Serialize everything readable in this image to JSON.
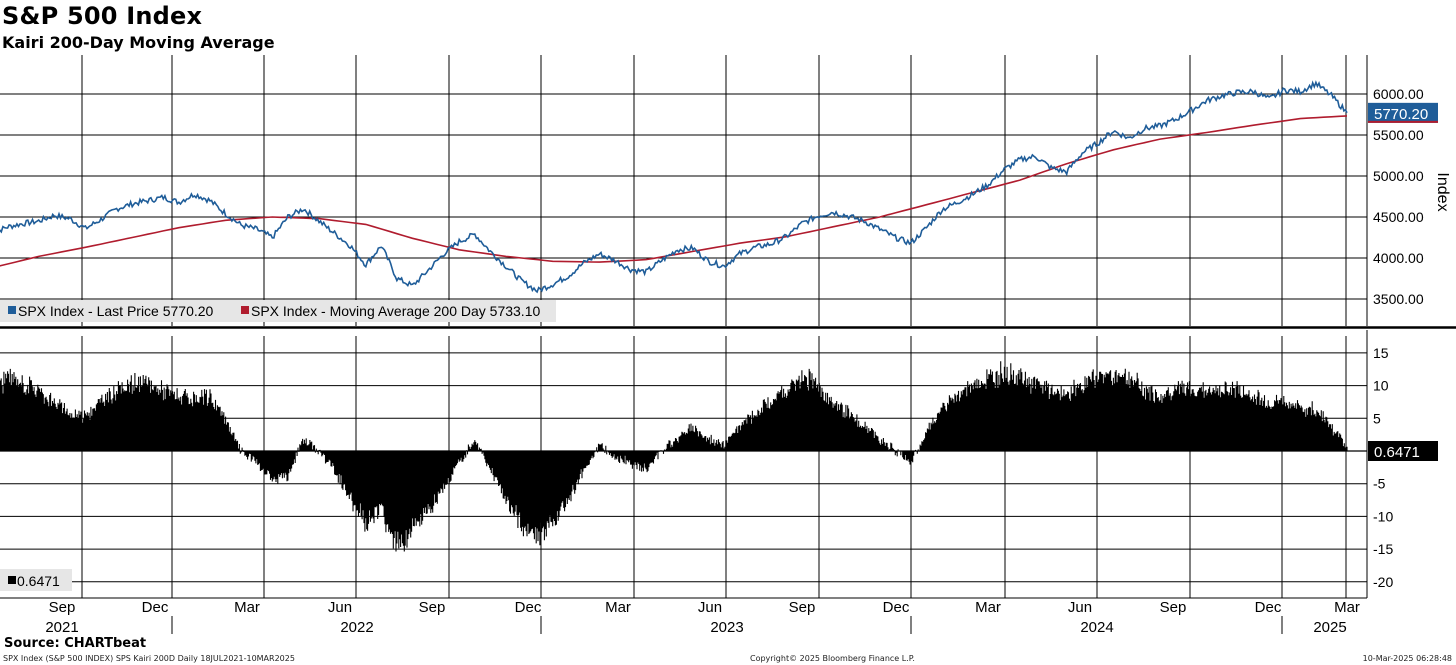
{
  "header": {
    "title": "S&P 500 Index",
    "subtitle": "Kairi 200-Day Moving Average"
  },
  "footer": {
    "source": "Source: CHARTbeat",
    "description": "SPX Index (S&P 500 INDEX) SPS Kairi 200D  Daily 18JUL2021-10MAR2025",
    "copyright": "Copyright© 2025 Bloomberg Finance L.P.",
    "timestamp": "10-Mar-2025 06:28:48"
  },
  "colors": {
    "price_line": "#1f5d99",
    "ma_line": "#b01c2e",
    "histogram": "#000000",
    "grid": "#000000"
  },
  "chart_data": [
    {
      "type": "line",
      "title": "S&P 500 Index",
      "ylabel": "Index",
      "ylim": [
        3200,
        6350
      ],
      "yticks": [
        3500,
        4000,
        4500,
        5000,
        5500,
        6000
      ],
      "ytick_labels": [
        "3500.00",
        "4000.00",
        "4500.00",
        "5000.00",
        "5500.00",
        "6000.00"
      ],
      "x_months": [
        "Sep",
        "Dec",
        "Mar",
        "Jun",
        "Sep",
        "Dec",
        "Mar",
        "Jun",
        "Sep",
        "Dec",
        "Mar",
        "Jun",
        "Sep",
        "Dec",
        "Mar"
      ],
      "x_years": [
        "2021",
        "2022",
        "2023",
        "2024",
        "2025"
      ],
      "legend": [
        {
          "name": "SPX Index - Last Price 5770.20",
          "color": "#1f5d99"
        },
        {
          "name": "SPX Index - Moving Average 200 Day 5733.10",
          "color": "#b01c2e"
        }
      ],
      "last_value_label": "5770.20",
      "series": [
        {
          "name": "SPX Index - Last Price",
          "x": [
            0.0,
            0.5,
            1.0,
            1.5,
            2.0,
            2.5,
            3.0,
            3.5,
            4.0,
            4.5,
            5.0,
            5.5,
            6.0,
            6.5,
            7.0,
            7.5,
            8.0,
            8.5,
            9.0,
            9.5,
            10.0,
            10.5,
            11.0,
            11.5,
            12.0,
            12.5,
            13.0,
            13.5,
            14.0,
            14.5,
            15.0,
            15.5,
            16.0,
            16.5,
            17.0,
            17.5,
            18.0,
            18.5,
            19.0,
            19.5,
            20.0,
            20.5,
            21.0,
            21.5,
            22.0,
            22.5,
            23.0,
            23.5,
            24.0,
            24.5,
            25.0,
            25.5,
            26.0,
            26.5,
            27.0,
            27.5,
            28.0,
            28.5,
            29.0,
            29.5,
            30.0,
            30.5,
            31.0,
            31.5,
            32.0,
            32.5,
            33.0,
            33.5,
            34.0,
            34.5,
            35.0,
            35.5,
            36.0,
            36.5,
            37.0,
            37.5,
            38.0,
            38.5,
            39.0,
            39.5,
            40.0,
            40.5,
            41.0,
            41.5,
            42.0,
            42.5,
            43.0,
            43.5
          ],
          "values": [
            4300,
            4380,
            4420,
            4450,
            4520,
            4480,
            4360,
            4470,
            4600,
            4660,
            4700,
            4740,
            4680,
            4780,
            4700,
            4540,
            4400,
            4350,
            4250,
            4500,
            4600,
            4450,
            4300,
            4150,
            3920,
            4150,
            3750,
            3660,
            3850,
            4050,
            4200,
            4290,
            4080,
            3900,
            3720,
            3600,
            3680,
            3780,
            3940,
            4050,
            3970,
            3860,
            3830,
            3970,
            4100,
            4120,
            3960,
            3900,
            4050,
            4130,
            4170,
            4260,
            4420,
            4510,
            4560,
            4510,
            4450,
            4350,
            4250,
            4180,
            4370,
            4590,
            4680,
            4780,
            4900,
            5080,
            5200,
            5240,
            5100,
            5050,
            5280,
            5400,
            5550,
            5460,
            5580,
            5610,
            5690,
            5800,
            5920,
            5980,
            6020,
            6030,
            5940,
            6050,
            6030,
            6130,
            5980,
            5770.2
          ]
        },
        {
          "name": "SPX Index - Moving Average 200 Day",
          "x": [
            0.0,
            1.5,
            3.0,
            4.5,
            6.0,
            7.5,
            9.0,
            10.5,
            12.0,
            13.5,
            15.0,
            16.5,
            18.0,
            19.5,
            21.0,
            22.5,
            24.0,
            25.5,
            27.0,
            28.5,
            30.0,
            31.5,
            33.0,
            34.5,
            36.0,
            37.5,
            39.0,
            40.5,
            42.0,
            43.5
          ],
          "values": [
            3880,
            4020,
            4130,
            4250,
            4370,
            4460,
            4500,
            4480,
            4410,
            4240,
            4100,
            4020,
            3960,
            3950,
            3980,
            4080,
            4180,
            4260,
            4380,
            4500,
            4650,
            4800,
            4950,
            5150,
            5320,
            5450,
            5530,
            5620,
            5700,
            5733.1
          ]
        }
      ]
    },
    {
      "type": "bar",
      "title": "SPS Kairi 200D",
      "ylim": [
        -21.5,
        16.5
      ],
      "yticks": [
        -20,
        -15,
        -10,
        -5,
        0,
        5,
        10,
        15
      ],
      "ytick_labels": [
        "-20",
        "-15",
        "-10",
        "-5",
        "",
        "5",
        "10",
        "15"
      ],
      "legend": [
        {
          "name": "0.6471",
          "color": "#000000"
        }
      ],
      "last_value_label": "0.6471",
      "envelope_x": [
        0.0,
        0.5,
        1.0,
        1.5,
        2.0,
        2.5,
        3.0,
        3.5,
        4.0,
        4.5,
        5.0,
        5.5,
        6.0,
        6.5,
        7.0,
        7.5,
        8.0,
        8.5,
        9.0,
        9.5,
        10.0,
        10.5,
        11.0,
        11.5,
        12.0,
        12.5,
        13.0,
        13.5,
        14.0,
        14.5,
        15.0,
        15.5,
        16.0,
        16.5,
        17.0,
        17.5,
        18.0,
        18.5,
        19.0,
        19.5,
        20.0,
        20.5,
        21.0,
        21.5,
        22.0,
        22.5,
        23.0,
        23.5,
        24.0,
        24.5,
        25.0,
        25.5,
        26.0,
        26.5,
        27.0,
        27.5,
        28.0,
        28.5,
        29.0,
        29.5,
        30.0,
        30.5,
        31.0,
        31.5,
        32.0,
        32.5,
        33.0,
        33.5,
        34.0,
        34.5,
        35.0,
        35.5,
        36.0,
        36.5,
        37.0,
        37.5,
        38.0,
        38.5,
        39.0,
        39.5,
        40.0,
        40.5,
        41.0,
        41.5,
        42.0,
        42.5,
        43.0,
        43.5
      ],
      "envelope_values": [
        10,
        12,
        11,
        10,
        8,
        6,
        6,
        8,
        10,
        11,
        11,
        10,
        9,
        8,
        9,
        5,
        0,
        -2,
        -5,
        -4,
        2,
        0,
        -3,
        -8,
        -12,
        -10,
        -16,
        -13,
        -10,
        -6,
        -2,
        2,
        -3,
        -8,
        -12,
        -14,
        -12,
        -8,
        -3,
        1,
        -1,
        -2,
        -3,
        0,
        2,
        4,
        2,
        1,
        4,
        6,
        8,
        10,
        12,
        11,
        8,
        6,
        4,
        2,
        0,
        -2,
        3,
        7,
        9,
        11,
        12,
        13,
        12,
        11,
        10,
        9,
        11,
        12,
        13,
        12,
        10,
        9,
        10,
        10,
        10,
        10,
        10,
        9,
        8,
        8,
        7,
        7,
        4,
        0.6471
      ]
    }
  ]
}
